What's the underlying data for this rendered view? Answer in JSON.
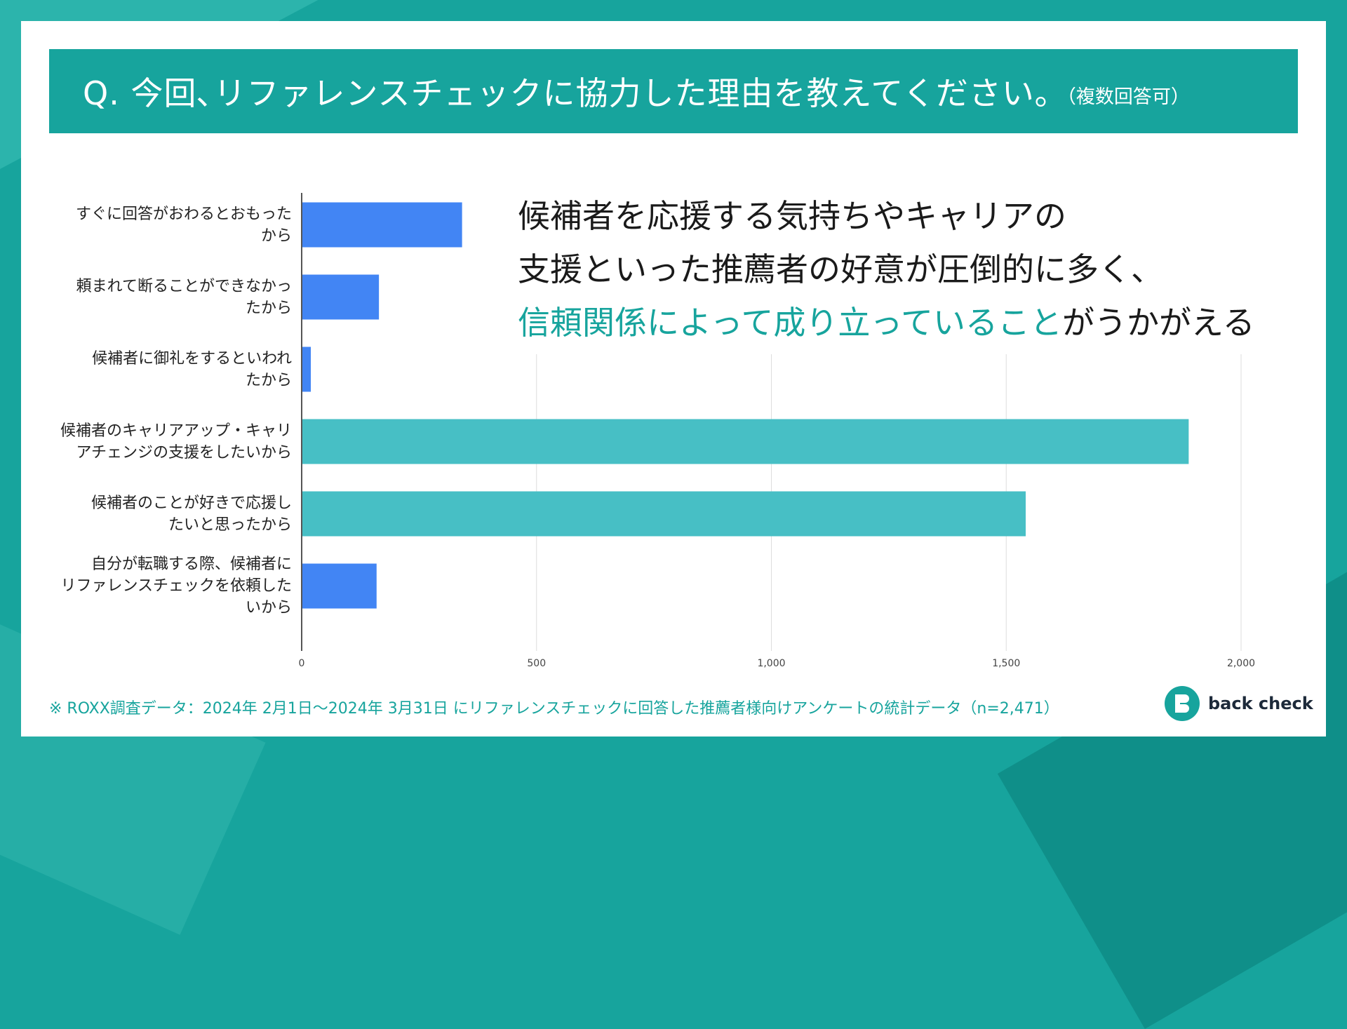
{
  "title": {
    "main": "Q. 今回､リファレンスチェックに協力した理由を教えてください｡",
    "sub": "（複数回答可）"
  },
  "headline": {
    "line1": "候補者を応援する気持ちやキャリアの",
    "line2": "支援といった推薦者の好意が圧倒的に多く、",
    "line3_highlight": "信頼関係によって成り立っていること",
    "line3_rest": "がうかがえる"
  },
  "chart_data": {
    "type": "bar",
    "orientation": "horizontal",
    "categories": [
      "すぐに回答がおわるとおもった\nから",
      "頼まれて断ることができなかっ\nたから",
      "候補者に御礼をするといわれ\nたから",
      "候補者のキャリアアップ・キャリ\nアチェンジの支援をしたいから",
      "候補者のことが好きで応援し\nたいと思ったから",
      "自分が転職する際、候補者に\nリファレンスチェックを依頼した\nいから"
    ],
    "values": [
      340,
      163,
      18,
      1887,
      1540,
      158
    ],
    "highlighted": [
      false,
      false,
      false,
      true,
      true,
      false
    ],
    "xlim": [
      0,
      2100
    ],
    "x_ticks": [
      0,
      500,
      1000,
      1500,
      2000
    ],
    "x_tick_labels": [
      "0",
      "500",
      "1,000",
      "1,500",
      "2,000"
    ],
    "grid": true,
    "title": "",
    "xlabel": "",
    "ylabel": ""
  },
  "colors": {
    "primary_bar": "#4285f4",
    "highlight_bar": "#47bfc5",
    "brand_teal": "#17a49d",
    "grid": "#dddddd",
    "axis": "#555555"
  },
  "footnote": "※ ROXX調査データ：2024年 2月1日〜2024年 3月31日 にリファレンスチェックに回答した推薦者様向けアンケートの統計データ（n=2,471）",
  "logo": {
    "text": "back check",
    "icon": "back-check-logo-icon"
  }
}
